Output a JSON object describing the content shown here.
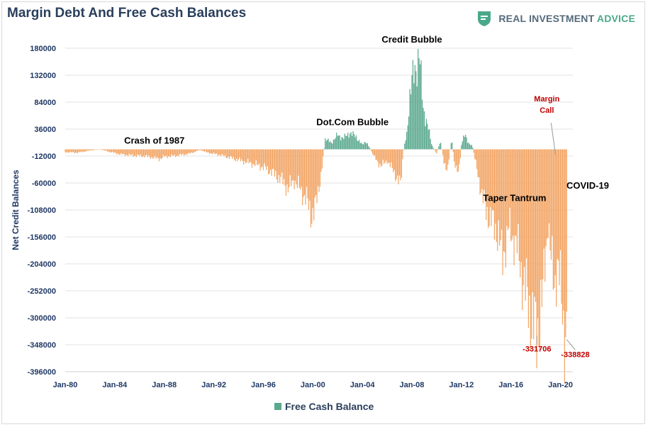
{
  "header": {
    "title": "Margin Debt And Free Cash Balances",
    "brand_main": "REAL INVESTMENT ",
    "brand_accent": "ADVICE"
  },
  "colors": {
    "positive": "#5aa88e",
    "negative": "#f2a463",
    "grid": "#e3e3e3",
    "text": "#1f3864",
    "red": "#c00000"
  },
  "chart_data": {
    "type": "bar",
    "title": "Margin Debt And Free Cash Balances",
    "ylabel": "Net Credit Balances",
    "xlabel": "",
    "ylim": [
      -396000,
      180000
    ],
    "yticks": [
      180000,
      132000,
      84000,
      36000,
      -12000,
      -60000,
      -108000,
      -156000,
      -204000,
      -252000,
      -300000,
      -348000,
      -396000
    ],
    "xlim": [
      1980,
      2021.0
    ],
    "xticks": [
      {
        "label": "Jan-80",
        "year": 1980
      },
      {
        "label": "Jan-84",
        "year": 1984
      },
      {
        "label": "Jan-88",
        "year": 1988
      },
      {
        "label": "Jan-92",
        "year": 1992
      },
      {
        "label": "Jan-96",
        "year": 1996
      },
      {
        "label": "Jan-00",
        "year": 2000
      },
      {
        "label": "Jan-04",
        "year": 2004
      },
      {
        "label": "Jan-08",
        "year": 2008
      },
      {
        "label": "Jan-12",
        "year": 2012
      },
      {
        "label": "Jan-16",
        "year": 2016
      },
      {
        "label": "Jan-20",
        "year": 2020
      }
    ],
    "series": [
      {
        "name": "Free Cash Balance",
        "points": [
          [
            1980.0,
            -5000
          ],
          [
            1981.0,
            -6000
          ],
          [
            1982.0,
            -2000
          ],
          [
            1982.8,
            0
          ],
          [
            1983.5,
            -4000
          ],
          [
            1984.5,
            -9000
          ],
          [
            1985.5,
            -11000
          ],
          [
            1986.5,
            -12000
          ],
          [
            1987.6,
            -17000
          ],
          [
            1988.0,
            -13000
          ],
          [
            1989.0,
            -11000
          ],
          [
            1990.0,
            -8000
          ],
          [
            1990.9,
            -1000
          ],
          [
            1991.5,
            -6000
          ],
          [
            1992.5,
            -10000
          ],
          [
            1993.5,
            -16000
          ],
          [
            1994.5,
            -22000
          ],
          [
            1995.5,
            -28000
          ],
          [
            1996.0,
            -32000
          ],
          [
            1996.5,
            -38000
          ],
          [
            1997.0,
            -46000
          ],
          [
            1997.5,
            -55000
          ],
          [
            1998.0,
            -70000
          ],
          [
            1998.5,
            -55000
          ],
          [
            1999.0,
            -72000
          ],
          [
            1999.5,
            -90000
          ],
          [
            1999.9,
            -118000
          ],
          [
            2000.2,
            -105000
          ],
          [
            2000.7,
            -40000
          ],
          [
            2001.0,
            18000
          ],
          [
            2001.5,
            12000
          ],
          [
            2002.0,
            25000
          ],
          [
            2002.5,
            20000
          ],
          [
            2003.0,
            30000
          ],
          [
            2003.5,
            22000
          ],
          [
            2004.0,
            8000
          ],
          [
            2004.3,
            15000
          ],
          [
            2004.6,
            2000
          ],
          [
            2005.0,
            -15000
          ],
          [
            2005.5,
            -30000
          ],
          [
            2006.0,
            -20000
          ],
          [
            2006.5,
            -38000
          ],
          [
            2006.9,
            -55000
          ],
          [
            2007.1,
            -65000
          ],
          [
            2007.3,
            -5000
          ],
          [
            2007.6,
            30000
          ],
          [
            2007.8,
            90000
          ],
          [
            2008.0,
            120000
          ],
          [
            2008.3,
            145000
          ],
          [
            2008.6,
            170000
          ],
          [
            2008.9,
            75000
          ],
          [
            2009.3,
            40000
          ],
          [
            2009.6,
            8000
          ],
          [
            2010.0,
            -8000
          ],
          [
            2010.3,
            15000
          ],
          [
            2010.6,
            -25000
          ],
          [
            2010.9,
            -35000
          ],
          [
            2011.2,
            20000
          ],
          [
            2011.4,
            -18000
          ],
          [
            2011.6,
            -35000
          ],
          [
            2011.8,
            -45000
          ],
          [
            2012.0,
            8000
          ],
          [
            2012.3,
            28000
          ],
          [
            2012.6,
            10000
          ],
          [
            2012.9,
            5000
          ],
          [
            2013.2,
            -30000
          ],
          [
            2013.6,
            -75000
          ],
          [
            2014.0,
            -110000
          ],
          [
            2014.4,
            -125000
          ],
          [
            2014.8,
            -145000
          ],
          [
            2015.0,
            -150000
          ],
          [
            2015.3,
            -200000
          ],
          [
            2015.5,
            -175000
          ],
          [
            2015.8,
            -140000
          ],
          [
            2016.1,
            -155000
          ],
          [
            2016.4,
            -165000
          ],
          [
            2016.7,
            -200000
          ],
          [
            2017.0,
            -235000
          ],
          [
            2017.3,
            -262000
          ],
          [
            2017.6,
            -295000
          ],
          [
            2017.9,
            -320000
          ],
          [
            2018.1,
            -331706
          ],
          [
            2018.3,
            -300000
          ],
          [
            2018.6,
            -255000
          ],
          [
            2018.8,
            -185000
          ],
          [
            2019.0,
            -125000
          ],
          [
            2019.2,
            -195000
          ],
          [
            2019.5,
            -235000
          ],
          [
            2019.7,
            -215000
          ],
          [
            2019.8,
            -210000
          ],
          [
            2020.0,
            -250000
          ],
          [
            2020.2,
            -285000
          ],
          [
            2020.3,
            -325000
          ],
          [
            2020.5,
            -338828
          ]
        ]
      }
    ],
    "annotations": [
      {
        "text": "Crash of 1987",
        "year": 1987.2,
        "value": 10000
      },
      {
        "text": "Dot.Com Bubble",
        "year": 2003.2,
        "value": 43000
      },
      {
        "text": "Credit Bubble",
        "year": 2008.0,
        "value": 190000
      },
      {
        "text": "Taper Tantrum",
        "year": 2016.3,
        "value": -92000
      },
      {
        "text": "COVID-19",
        "year": 2022.2,
        "value": -70000
      }
    ],
    "red_labels": [
      {
        "line1": "Margin",
        "line2": "Call",
        "year": 2018.9,
        "value": 75000,
        "pointer_year": 2019.6,
        "pointer_value": -10000
      },
      {
        "line1": "-331706",
        "year": 2018.1,
        "value": -360000,
        "pointer_year": 2018.1,
        "pointer_value": -331706
      },
      {
        "line1": "-338828",
        "year": 2021.2,
        "value": -370000,
        "pointer_year": 2020.5,
        "pointer_value": -338828
      }
    ],
    "legend": [
      {
        "label": "Free Cash Balance",
        "position": "bottom"
      }
    ]
  }
}
